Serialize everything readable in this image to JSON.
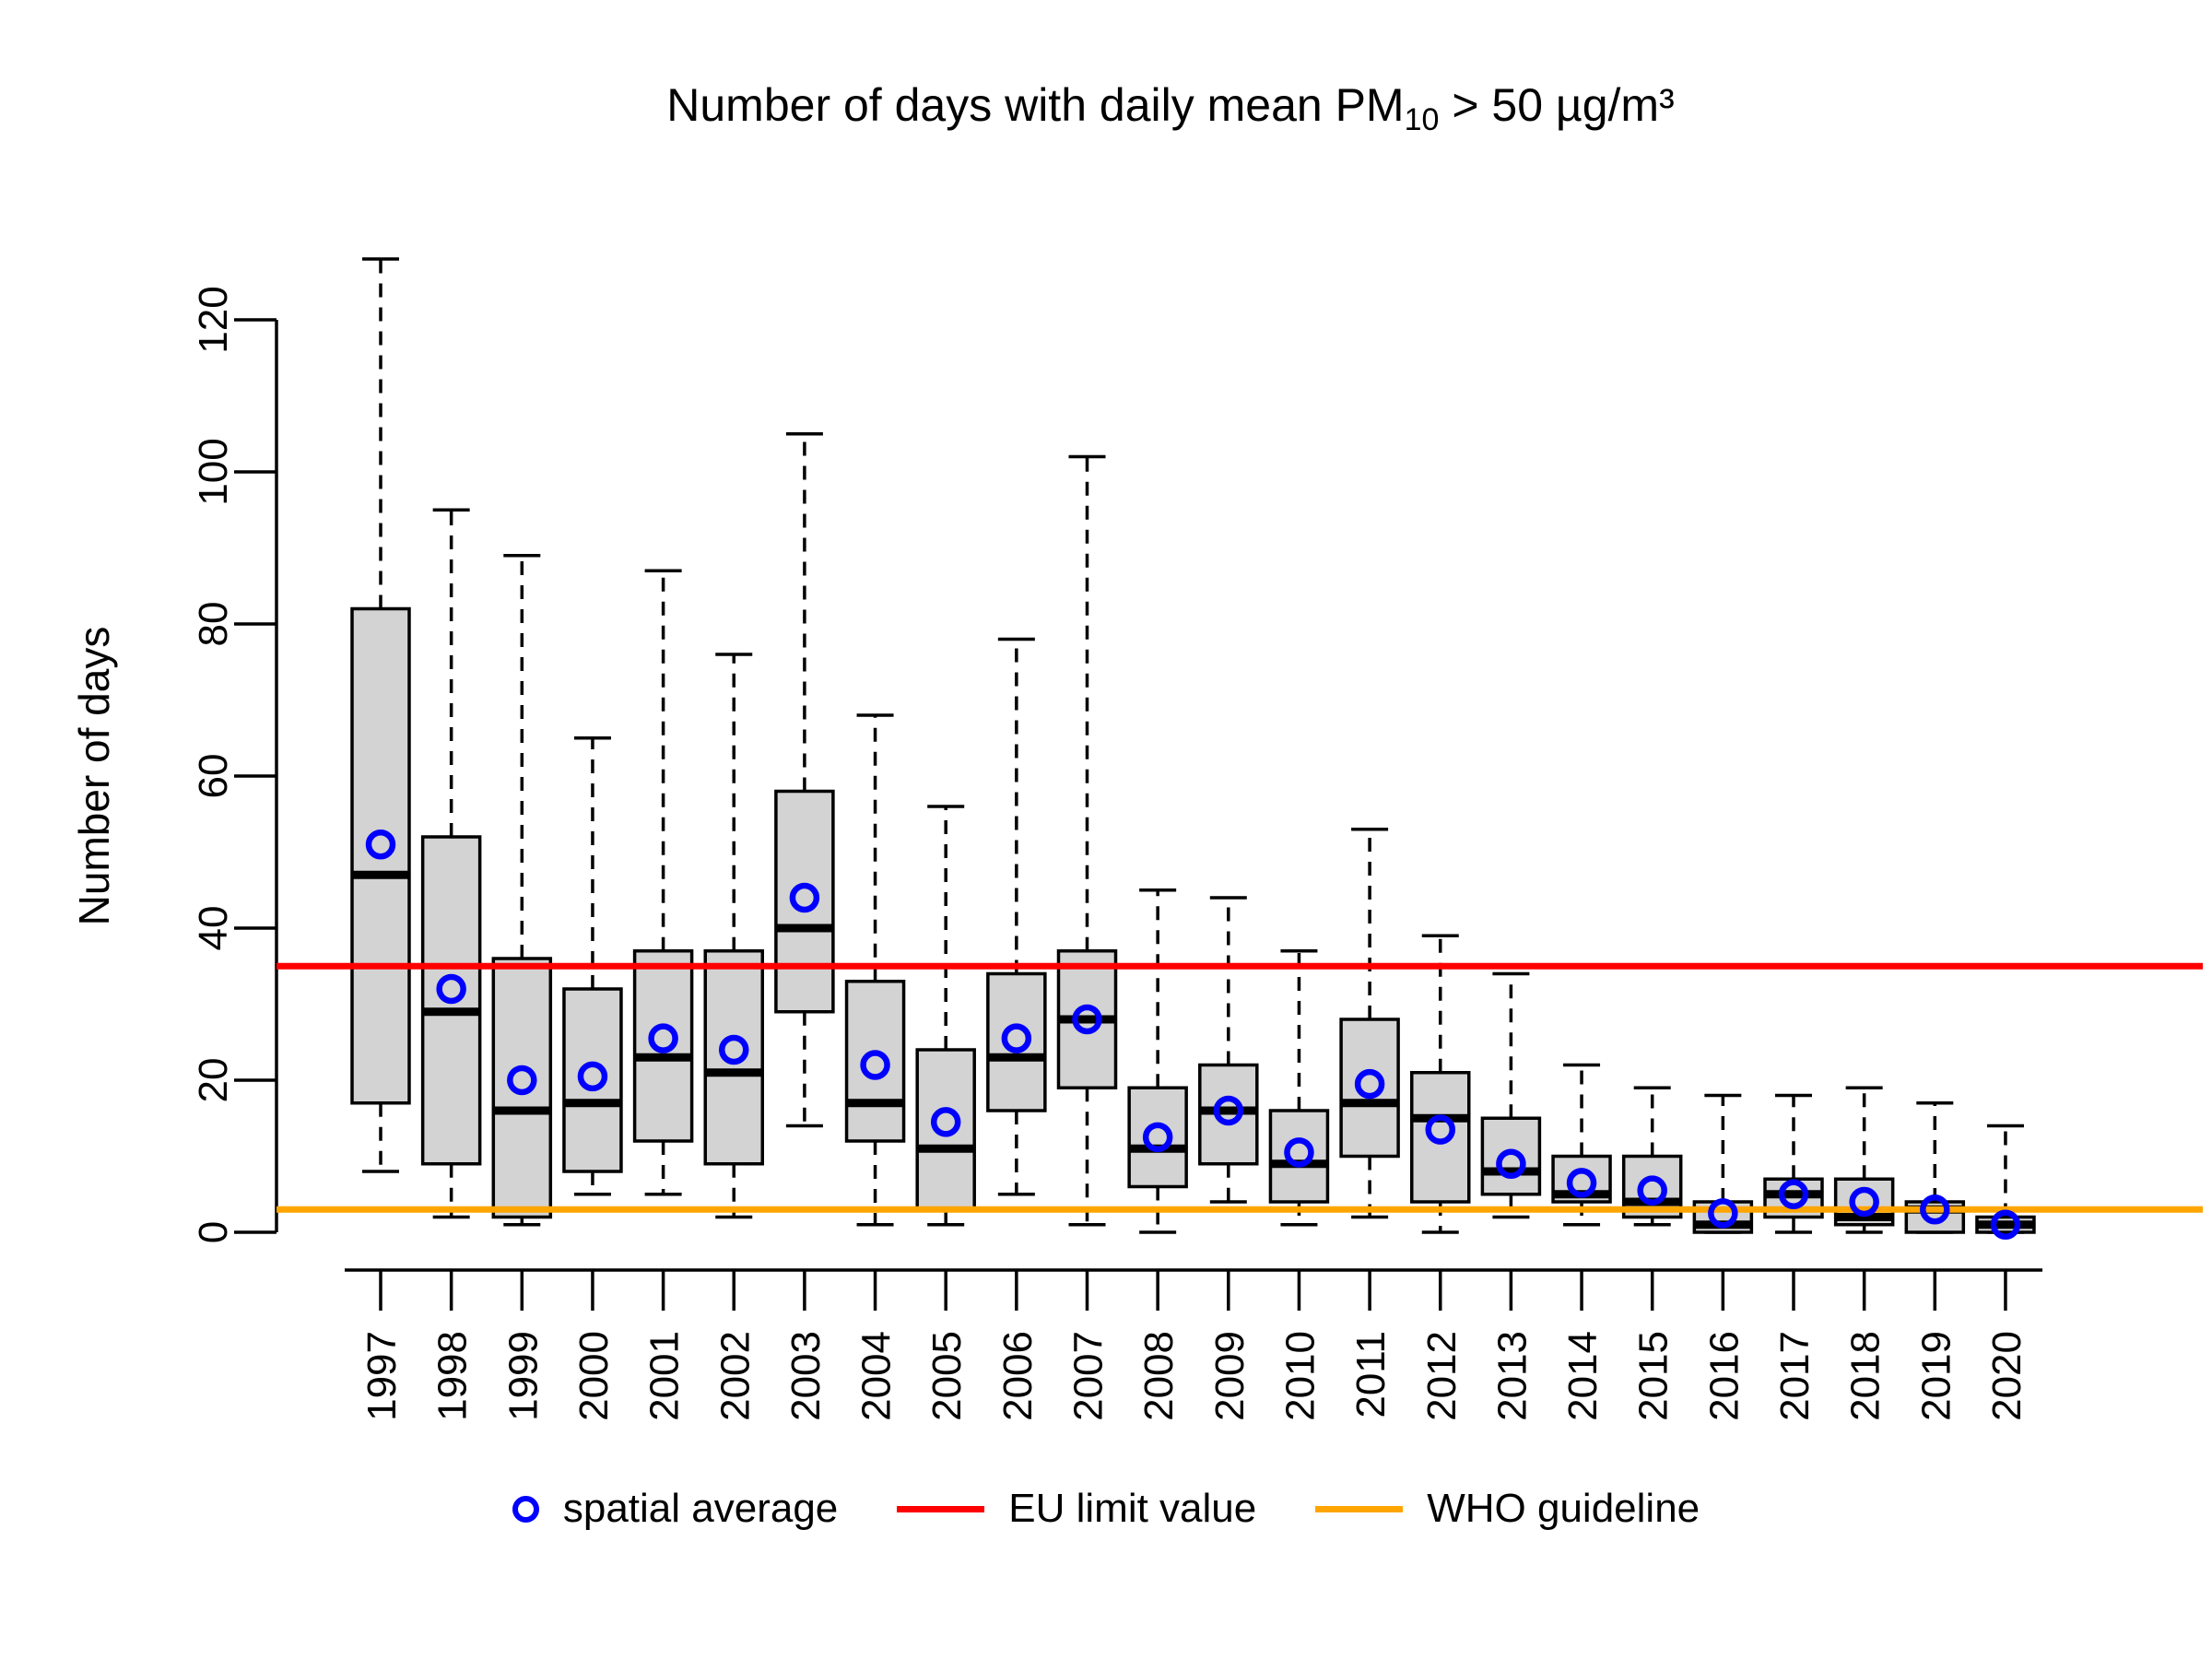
{
  "title": "Number of days with daily mean PM₁₀ > 50 µg/m³",
  "title_parts": {
    "prefix": "Number of days with daily mean PM",
    "subscript": "10",
    "suffix": " > 50 µg/m³"
  },
  "chart_data": {
    "type": "boxplot",
    "title": "Number of days with daily mean PM₁₀ > 50 µg/m³",
    "xlabel": "",
    "ylabel": "Number of days",
    "y_ticks": [
      0,
      20,
      40,
      60,
      80,
      100,
      120
    ],
    "ylim": [
      0,
      130
    ],
    "grid": false,
    "categories": [
      "1997",
      "1998",
      "1999",
      "2000",
      "2001",
      "2002",
      "2003",
      "2004",
      "2005",
      "2006",
      "2007",
      "2008",
      "2009",
      "2010",
      "2011",
      "2012",
      "2013",
      "2014",
      "2015",
      "2016",
      "2017",
      "2018",
      "2019",
      "2020"
    ],
    "series": [
      {
        "year": "1997",
        "min": 8,
        "q1": 17,
        "median": 47,
        "q3": 82,
        "max": 128,
        "mean": 51
      },
      {
        "year": "1998",
        "min": 2,
        "q1": 9,
        "median": 29,
        "q3": 52,
        "max": 95,
        "mean": 32
      },
      {
        "year": "1999",
        "min": 1,
        "q1": 2,
        "median": 16,
        "q3": 36,
        "max": 89,
        "mean": 20
      },
      {
        "year": "2000",
        "min": 5,
        "q1": 8,
        "median": 17,
        "q3": 32,
        "max": 65,
        "mean": 20.5
      },
      {
        "year": "2001",
        "min": 5,
        "q1": 12,
        "median": 23,
        "q3": 37,
        "max": 87,
        "mean": 25.5
      },
      {
        "year": "2002",
        "min": 2,
        "q1": 9,
        "median": 21,
        "q3": 37,
        "max": 76,
        "mean": 24
      },
      {
        "year": "2003",
        "min": 14,
        "q1": 29,
        "median": 40,
        "q3": 58,
        "max": 105,
        "mean": 44
      },
      {
        "year": "2004",
        "min": 1,
        "q1": 12,
        "median": 17,
        "q3": 33,
        "max": 68,
        "mean": 22
      },
      {
        "year": "2005",
        "min": 1,
        "q1": 3,
        "median": 11,
        "q3": 24,
        "max": 56,
        "mean": 14.5
      },
      {
        "year": "2006",
        "min": 5,
        "q1": 16,
        "median": 23,
        "q3": 34,
        "max": 78,
        "mean": 25.5
      },
      {
        "year": "2007",
        "min": 1,
        "q1": 19,
        "median": 28,
        "q3": 37,
        "max": 102,
        "mean": 28
      },
      {
        "year": "2008",
        "min": 0,
        "q1": 6,
        "median": 11,
        "q3": 19,
        "max": 45,
        "mean": 12.5
      },
      {
        "year": "2009",
        "min": 4,
        "q1": 9,
        "median": 16,
        "q3": 22,
        "max": 44,
        "mean": 16
      },
      {
        "year": "2010",
        "min": 1,
        "q1": 4,
        "median": 9,
        "q3": 16,
        "max": 37,
        "mean": 10.5
      },
      {
        "year": "2011",
        "min": 2,
        "q1": 10,
        "median": 17,
        "q3": 28,
        "max": 53,
        "mean": 19.5
      },
      {
        "year": "2012",
        "min": 0,
        "q1": 4,
        "median": 15,
        "q3": 21,
        "max": 39,
        "mean": 13.5
      },
      {
        "year": "2013",
        "min": 2,
        "q1": 5,
        "median": 8,
        "q3": 15,
        "max": 34,
        "mean": 9
      },
      {
        "year": "2014",
        "min": 1,
        "q1": 4,
        "median": 5,
        "q3": 10,
        "max": 22,
        "mean": 6.5
      },
      {
        "year": "2015",
        "min": 1,
        "q1": 2,
        "median": 4,
        "q3": 10,
        "max": 19,
        "mean": 5.5
      },
      {
        "year": "2016",
        "min": 0,
        "q1": 0,
        "median": 1,
        "q3": 4,
        "max": 18,
        "mean": 2.5
      },
      {
        "year": "2017",
        "min": 0,
        "q1": 2,
        "median": 5,
        "q3": 7,
        "max": 18,
        "mean": 5
      },
      {
        "year": "2018",
        "min": 0,
        "q1": 1,
        "median": 2,
        "q3": 7,
        "max": 19,
        "mean": 4
      },
      {
        "year": "2019",
        "min": 0,
        "q1": 0,
        "median": 3,
        "q3": 4,
        "max": 17,
        "mean": 3
      },
      {
        "year": "2020",
        "min": 0,
        "q1": 0,
        "median": 1,
        "q3": 2,
        "max": 14,
        "mean": 1
      }
    ],
    "ref_lines": [
      {
        "label": "EU limit value",
        "value": 35,
        "color": "#ff0000"
      },
      {
        "label": "WHO guideline",
        "value": 3,
        "color": "#ffa500"
      }
    ],
    "legend": {
      "position": "bottom",
      "items": [
        {
          "label": "spatial average",
          "marker": "open-circle",
          "color": "#0000ff"
        },
        {
          "label": "EU limit value",
          "marker": "line",
          "color": "#ff0000"
        },
        {
          "label": "WHO guideline",
          "marker": "line",
          "color": "#ffa500"
        }
      ]
    },
    "colors": {
      "box_fill": "#d3d3d3",
      "box_border": "#000000",
      "median": "#000000",
      "mean_marker": "#0000ff",
      "eu_limit": "#ff0000",
      "who_guideline": "#ffa500"
    }
  }
}
